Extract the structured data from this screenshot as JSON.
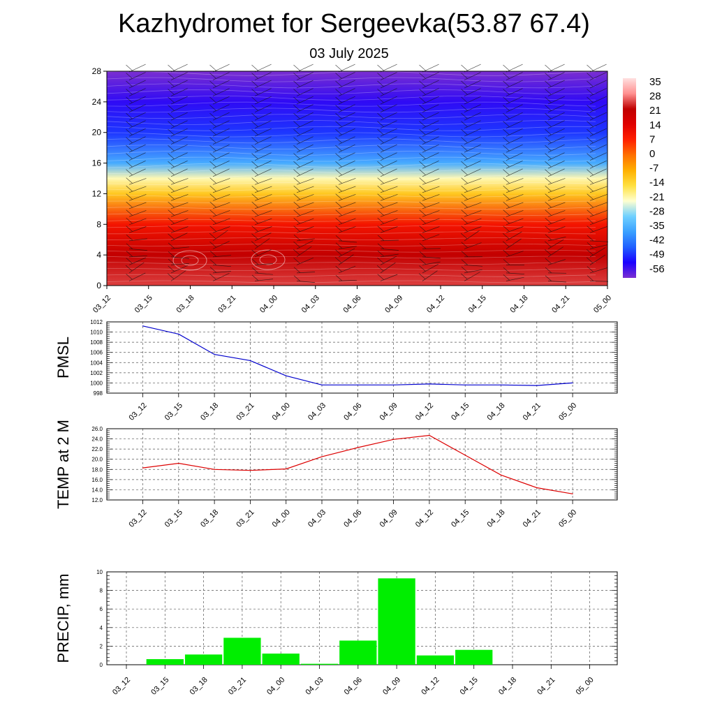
{
  "header": {
    "title": "Kazhydromet for Sergeevka(53.87 67.4)",
    "date": "03 July 2025"
  },
  "colors": {
    "pmsl_line": "#0000cc",
    "temp_line": "#dd0000",
    "precip_bar": "#00ee00",
    "colorbar_stops": [
      "#7b2fd0",
      "#1a00ff",
      "#2060ff",
      "#3aa0ff",
      "#6fd0ff",
      "#ffffd0",
      "#ffe040",
      "#ffb000",
      "#ff7000",
      "#ff2000",
      "#e00000",
      "#c00000",
      "#ff9090",
      "#ffe0e0"
    ]
  },
  "chart_data": [
    {
      "id": "cross_section",
      "type": "heatmap",
      "x_ticks": [
        "03_12",
        "03_15",
        "03_18",
        "03_21",
        "04_00",
        "04_03",
        "04_06",
        "04_09",
        "04_12",
        "04_15",
        "04_18",
        "04_21",
        "05_00"
      ],
      "ylim": [
        0,
        28
      ],
      "y_ticks": [
        0,
        4,
        8,
        12,
        16,
        20,
        24,
        28
      ],
      "colorbar_labels": [
        "35",
        "28",
        "21",
        "14",
        "7",
        "0",
        "-7",
        "-14",
        "-21",
        "-28",
        "-35",
        "-42",
        "-49",
        "-56"
      ],
      "temperature_profile": [
        {
          "height": 0,
          "value": 28
        },
        {
          "height": 4,
          "value": 24
        },
        {
          "height": 8,
          "value": 12
        },
        {
          "height": 12,
          "value": -10
        },
        {
          "height": 14,
          "value": -20
        },
        {
          "height": 16,
          "value": -35
        },
        {
          "height": 20,
          "value": -48
        },
        {
          "height": 24,
          "value": -54
        },
        {
          "height": 28,
          "value": -60
        }
      ],
      "wind_barbs": true
    },
    {
      "id": "pmsl",
      "type": "line",
      "ylabel": "PMSL",
      "ylim": [
        998,
        1012
      ],
      "y_ticks": [
        "998",
        "1000",
        "1002",
        "1004",
        "1006",
        "1008",
        "1010",
        "1012"
      ],
      "x": [
        "03_12",
        "03_15",
        "03_18",
        "03_21",
        "04_00",
        "04_03",
        "04_06",
        "04_09",
        "04_12",
        "04_15",
        "04_18",
        "04_21",
        "05_00"
      ],
      "values": [
        1011.2,
        1009.6,
        1005.6,
        1004.4,
        1001.4,
        999.6,
        999.6,
        999.6,
        999.8,
        999.6,
        999.6,
        999.5,
        1000.0
      ]
    },
    {
      "id": "temp2m",
      "type": "line",
      "ylabel": "TEMP at 2 M",
      "ylim": [
        12,
        26
      ],
      "y_ticks": [
        "12.0",
        "14.0",
        "16.0",
        "18.0",
        "20.0",
        "22.0",
        "24.0",
        "26.0"
      ],
      "x": [
        "03_12",
        "03_15",
        "03_18",
        "03_21",
        "04_00",
        "04_03",
        "04_06",
        "04_09",
        "04_12",
        "04_15",
        "04_18",
        "04_21",
        "05_00"
      ],
      "values": [
        18.3,
        19.2,
        18.0,
        17.8,
        18.1,
        20.5,
        22.3,
        23.9,
        24.7,
        20.8,
        16.9,
        14.4,
        13.2
      ]
    },
    {
      "id": "precip",
      "type": "bar",
      "ylabel": "PRECIP, mm",
      "ylim": [
        0,
        10
      ],
      "y_ticks": [
        "0",
        "2",
        "4",
        "6",
        "8",
        "10"
      ],
      "categories": [
        "03_12",
        "03_15",
        "03_18",
        "03_21",
        "04_00",
        "04_03",
        "04_06",
        "04_09",
        "04_12",
        "04_15",
        "04_18",
        "04_21",
        "05_00"
      ],
      "values": [
        0,
        0.6,
        1.1,
        2.9,
        1.2,
        0.1,
        2.6,
        9.3,
        1.0,
        1.6,
        0,
        0,
        0
      ]
    }
  ]
}
